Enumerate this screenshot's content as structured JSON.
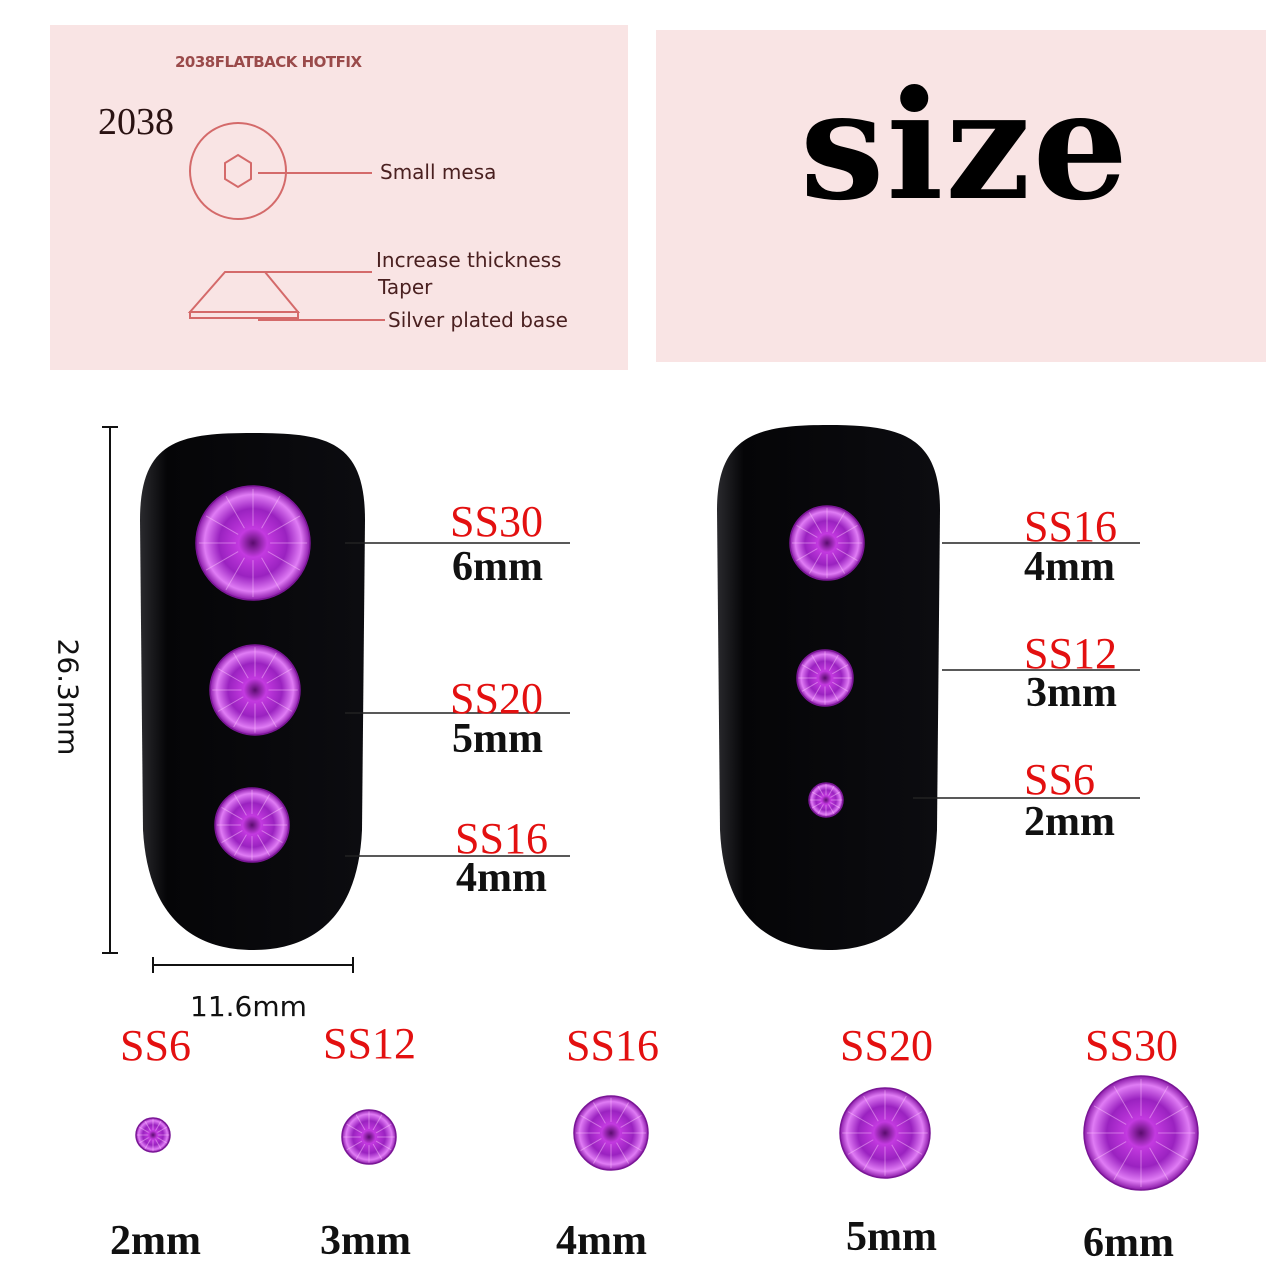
{
  "diagram": {
    "header": "2038FLATBACK HOTFIX",
    "model": "2038",
    "callouts": [
      "Small mesa",
      "Increase thickness",
      "Taper",
      "Silver plated base"
    ]
  },
  "title": "size",
  "dimensions": {
    "height": "26.3mm",
    "width": "11.6mm"
  },
  "left_nail": [
    {
      "ss": "SS30",
      "mm": "6mm"
    },
    {
      "ss": "SS20",
      "mm": "5mm"
    },
    {
      "ss": "SS16",
      "mm": "4mm"
    }
  ],
  "right_nail": [
    {
      "ss": "SS16",
      "mm": "4mm"
    },
    {
      "ss": "SS12",
      "mm": "3mm"
    },
    {
      "ss": "SS6",
      "mm": "2mm"
    }
  ],
  "row": [
    {
      "ss": "SS6",
      "mm": "2mm"
    },
    {
      "ss": "SS12",
      "mm": "3mm"
    },
    {
      "ss": "SS16",
      "mm": "4mm"
    },
    {
      "ss": "SS20",
      "mm": "5mm"
    },
    {
      "ss": "SS30",
      "mm": "6mm"
    }
  ],
  "colors": {
    "panel": "#f9e4e4",
    "label_red": "#e31010",
    "gem": "#b52ed6",
    "diagram_line": "#d46a6a"
  }
}
